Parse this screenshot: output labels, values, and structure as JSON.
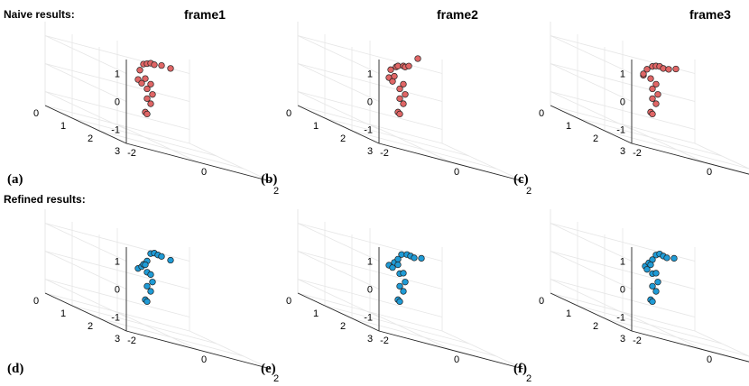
{
  "figure": {
    "row_labels": [
      "Naive results:",
      "Refined results:"
    ],
    "frame_titles": [
      "frame1",
      "frame2",
      "frame3"
    ],
    "panel_letters": [
      "(a)",
      "(b)",
      "(c)",
      "(d)",
      "(e)",
      "(f)"
    ]
  },
  "colors": {
    "naive_marker": "#e06666",
    "refined_marker": "#1f9bd6",
    "marker_edge": "#202020"
  },
  "axes_common": {
    "x_ticks": [
      -2,
      0,
      2
    ],
    "y_ticks": [
      0,
      1,
      2,
      3
    ],
    "z_ticks": [
      -1,
      0,
      1
    ],
    "xlim": [
      -2,
      2
    ],
    "ylim": [
      0,
      3
    ],
    "zlim": [
      -1.5,
      1.5
    ],
    "grid": true
  },
  "chart_data": [
    {
      "type": "scatter",
      "panel": "(a)",
      "row": "Naive results:",
      "title": "frame1",
      "x": [
        -0.55,
        -0.45,
        -0.5,
        -0.4,
        -0.3,
        -0.2,
        -0.1,
        0.1,
        0.35,
        -0.35,
        -0.3,
        -0.2,
        -0.15,
        -0.3,
        -0.2,
        -0.35,
        -0.3
      ],
      "y": [
        1.5,
        1.5,
        1.5,
        1.5,
        1.5,
        1.5,
        1.5,
        1.5,
        1.5,
        1.5,
        1.5,
        1.5,
        1.5,
        1.5,
        1.5,
        1.5,
        1.5
      ],
      "z": [
        0.6,
        0.5,
        0.95,
        1.2,
        1.25,
        1.3,
        1.28,
        1.32,
        1.3,
        0.7,
        0.35,
        0.55,
        0.2,
        0.0,
        -0.15,
        -0.5,
        -0.55
      ]
    },
    {
      "type": "scatter",
      "panel": "(b)",
      "row": "Naive results:",
      "title": "frame2",
      "x": [
        -0.6,
        -0.5,
        -0.55,
        -0.4,
        -0.35,
        -0.2,
        -0.15,
        -0.05,
        0.2,
        -0.45,
        -0.3,
        -0.2,
        -0.15,
        -0.3,
        -0.2,
        -0.35,
        -0.3
      ],
      "y": [
        1.5,
        1.5,
        1.5,
        1.5,
        1.5,
        1.5,
        1.5,
        1.5,
        1.5,
        1.5,
        1.5,
        1.5,
        1.5,
        1.5,
        1.5,
        1.5,
        1.5
      ],
      "z": [
        0.65,
        0.55,
        0.95,
        1.1,
        1.15,
        1.2,
        1.18,
        1.25,
        1.6,
        0.75,
        0.35,
        0.55,
        0.2,
        0.0,
        -0.15,
        -0.5,
        -0.55
      ]
    },
    {
      "type": "scatter",
      "panel": "(c)",
      "row": "Naive results:",
      "title": "frame3",
      "x": [
        -0.55,
        -0.55,
        -0.45,
        -0.3,
        -0.2,
        -0.1,
        0.0,
        0.15,
        0.35,
        -0.35,
        -0.3,
        -0.2,
        -0.15,
        -0.3,
        -0.2,
        -0.35,
        -0.3
      ],
      "y": [
        1.5,
        1.5,
        1.5,
        1.5,
        1.5,
        1.5,
        1.5,
        1.5,
        1.5,
        1.5,
        1.5,
        1.5,
        1.5,
        1.5,
        1.5,
        1.5,
        1.5
      ],
      "z": [
        0.75,
        0.8,
        1.0,
        1.15,
        1.2,
        1.22,
        1.18,
        1.2,
        1.28,
        0.7,
        0.35,
        0.55,
        0.2,
        0.0,
        -0.15,
        -0.5,
        -0.55
      ]
    },
    {
      "type": "scatter",
      "panel": "(d)",
      "row": "Refined results:",
      "title": "",
      "x": [
        -0.55,
        -0.45,
        -0.4,
        -0.3,
        -0.2,
        -0.1,
        0.0,
        0.1,
        0.35,
        -0.35,
        -0.3,
        -0.2,
        -0.15,
        -0.3,
        -0.2,
        -0.35,
        -0.3
      ],
      "y": [
        1.5,
        1.5,
        1.5,
        1.5,
        1.5,
        1.5,
        1.5,
        1.5,
        1.5,
        1.5,
        1.5,
        1.5,
        1.5,
        1.5,
        1.5,
        1.5,
        1.5
      ],
      "z": [
        0.55,
        0.65,
        0.75,
        0.9,
        1.2,
        1.25,
        1.22,
        1.2,
        1.15,
        0.75,
        0.5,
        0.45,
        0.2,
        0.0,
        -0.15,
        -0.5,
        -0.55
      ]
    },
    {
      "type": "scatter",
      "panel": "(e)",
      "row": "Refined results:",
      "title": "",
      "x": [
        -0.6,
        -0.5,
        -0.45,
        -0.35,
        -0.25,
        -0.1,
        0.0,
        0.1,
        0.3,
        -0.35,
        -0.3,
        -0.2,
        -0.15,
        -0.3,
        -0.2,
        -0.35,
        -0.3
      ],
      "y": [
        1.5,
        1.5,
        1.5,
        1.5,
        1.5,
        1.5,
        1.5,
        1.5,
        1.5,
        1.5,
        1.5,
        1.5,
        1.5,
        1.5,
        1.5,
        1.5,
        1.5
      ],
      "z": [
        0.65,
        0.6,
        0.8,
        0.95,
        1.15,
        1.2,
        1.18,
        1.15,
        1.2,
        0.75,
        0.45,
        0.5,
        0.2,
        0.0,
        -0.15,
        -0.5,
        -0.55
      ]
    },
    {
      "type": "scatter",
      "panel": "(f)",
      "row": "Refined results:",
      "title": "",
      "x": [
        -0.5,
        -0.45,
        -0.4,
        -0.3,
        -0.2,
        -0.1,
        0.0,
        0.1,
        0.3,
        -0.35,
        -0.3,
        -0.2,
        -0.15,
        -0.3,
        -0.2,
        -0.35,
        -0.3
      ],
      "y": [
        1.5,
        1.5,
        1.5,
        1.5,
        1.5,
        1.5,
        1.5,
        1.5,
        1.5,
        1.5,
        1.5,
        1.5,
        1.5,
        1.5,
        1.5,
        1.5,
        1.5
      ],
      "z": [
        0.65,
        0.55,
        0.8,
        0.95,
        1.15,
        1.22,
        1.18,
        1.15,
        1.2,
        0.75,
        0.45,
        0.5,
        0.2,
        0.0,
        -0.15,
        -0.5,
        -0.55
      ]
    }
  ]
}
